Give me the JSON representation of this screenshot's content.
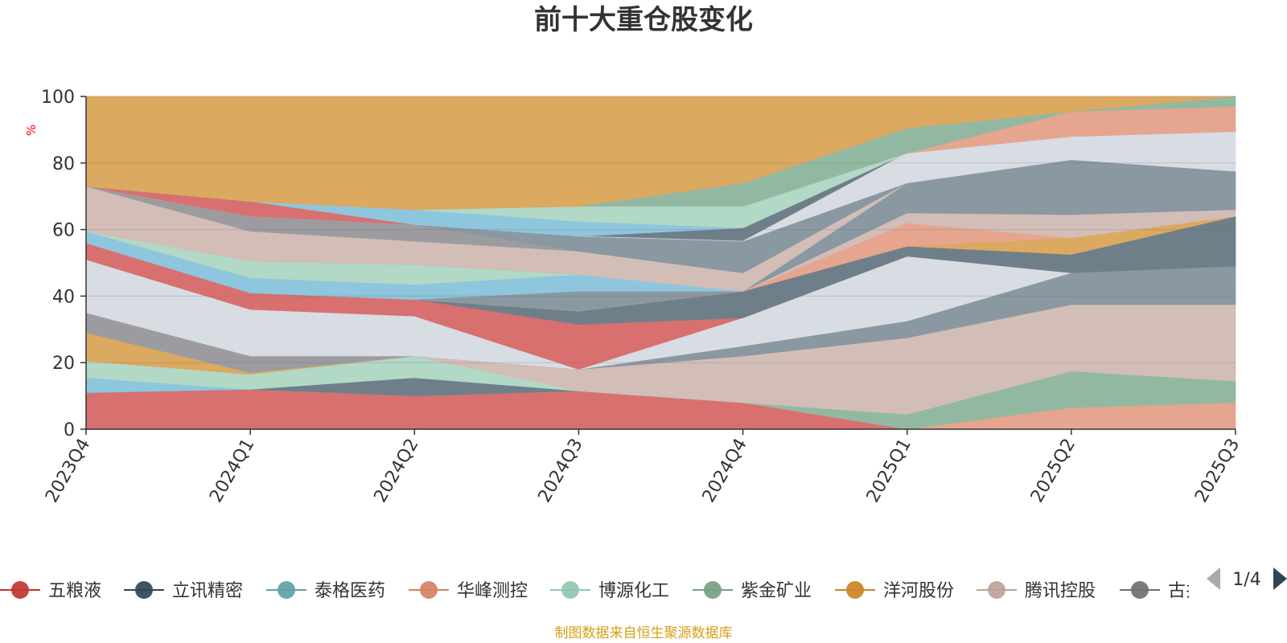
{
  "chart_data": {
    "type": "area",
    "title": "前十大重仓股变化",
    "ylabel": "%",
    "ylim": [
      0,
      100
    ],
    "yticks": [
      0,
      20,
      40,
      60,
      80,
      100
    ],
    "categories": [
      "2023Q4",
      "2024Q1",
      "2024Q2",
      "2024Q3",
      "2024Q4",
      "2025Q1",
      "2025Q2",
      "2025Q3"
    ],
    "bands": [
      {
        "color": "#d87070",
        "lower": [
          0,
          0,
          0,
          0,
          0,
          0,
          0,
          0
        ],
        "upper": [
          11,
          12,
          10,
          11.5,
          8,
          0,
          0,
          0
        ]
      },
      {
        "color": "#e6a58e",
        "lower": [
          0,
          0,
          0,
          0,
          0,
          0,
          0,
          0
        ],
        "upper": [
          0,
          0,
          0,
          0,
          0,
          0,
          6.5,
          8
        ]
      },
      {
        "color": "#93b8a2",
        "lower": [
          11,
          12,
          10,
          11.5,
          8,
          0,
          6.5,
          8
        ],
        "upper": [
          11,
          12,
          10,
          11.5,
          8,
          4.5,
          17.5,
          14.5
        ]
      },
      {
        "color": "#6e7f8a",
        "lower": [
          11,
          12,
          10,
          11.5,
          8,
          4.5,
          17.5,
          14.5
        ],
        "upper": [
          11,
          12,
          15.5,
          11.5,
          8,
          4.5,
          17.5,
          14.5
        ]
      },
      {
        "color": "#8ec6de",
        "lower": [
          11,
          12,
          15.5,
          11.5,
          8,
          4.5,
          17.5,
          14.5
        ],
        "upper": [
          15.5,
          12,
          15.5,
          11.5,
          8,
          4.5,
          17.5,
          14.5
        ]
      },
      {
        "color": "#b2d8c6",
        "lower": [
          15.5,
          12,
          15.5,
          11.5,
          8,
          4.5,
          17.5,
          14.5
        ],
        "upper": [
          20.5,
          16.5,
          22,
          18,
          8,
          4.5,
          17.5,
          14.5
        ]
      },
      {
        "color": "#d2bdb7",
        "lower": [
          20.5,
          16.5,
          22,
          11.5,
          8,
          4.5,
          17.5,
          14.5
        ],
        "upper": [
          20.5,
          16.5,
          22,
          18,
          22,
          27.5,
          37.5,
          37.5
        ]
      },
      {
        "color": "#dba95f",
        "lower": [
          20.5,
          16.5,
          22,
          18,
          22,
          27.5,
          37.5,
          37.5
        ],
        "upper": [
          29,
          17,
          22,
          18,
          22,
          27.5,
          37.5,
          37.5
        ]
      },
      {
        "color": "#9c9ca0",
        "lower": [
          29,
          17,
          22,
          18,
          22,
          27.5,
          37.5,
          37.5
        ],
        "upper": [
          35,
          22,
          22,
          18,
          22,
          27.5,
          37.5,
          37.5
        ]
      },
      {
        "color": "#8a98a2",
        "lower": [
          35,
          22,
          22,
          18,
          22,
          27.5,
          37.5,
          37.5
        ],
        "upper": [
          35,
          22,
          22,
          18,
          25,
          32.5,
          47,
          49
        ]
      },
      {
        "color": "#d8dce3",
        "lower": [
          35,
          22,
          22,
          18,
          25,
          32.5,
          47,
          49
        ],
        "upper": [
          51,
          36,
          34,
          18,
          33.5,
          52,
          47,
          49
        ]
      },
      {
        "color": "#d87070",
        "lower": [
          51,
          36,
          34,
          18,
          33.5,
          52,
          47,
          49
        ],
        "upper": [
          56,
          41,
          39,
          31.5,
          33.5,
          52,
          47,
          49
        ]
      },
      {
        "color": "#6e7f8a",
        "lower": [
          56,
          41,
          39,
          31.5,
          33.5,
          52,
          47,
          49
        ],
        "upper": [
          56,
          41,
          39,
          35.5,
          41.5,
          55,
          52.5,
          64
        ]
      },
      {
        "color": "#dba95f",
        "lower": [
          56,
          41,
          39,
          35.5,
          41.5,
          55,
          52.5,
          64
        ],
        "upper": [
          56,
          41,
          39,
          35.5,
          41.5,
          55,
          57.5,
          64
        ]
      },
      {
        "color": "#e6a58e",
        "lower": [
          56,
          41,
          39,
          35.5,
          41.5,
          55,
          57.5,
          64
        ],
        "upper": [
          56,
          41,
          39,
          35.5,
          41.5,
          62,
          57.5,
          64
        ]
      },
      {
        "color": "#d2bdb7",
        "lower": [
          56,
          41,
          39,
          35.5,
          41.5,
          62,
          57.5,
          64
        ],
        "upper": [
          56,
          41,
          39,
          35.5,
          41.5,
          65,
          64.5,
          66
        ]
      },
      {
        "color": "#8a98a2",
        "lower": [
          56,
          41,
          39,
          35.5,
          41.5,
          65,
          64.5,
          66
        ],
        "upper": [
          56,
          41,
          39,
          41.5,
          41.5,
          74,
          81,
          77.5
        ]
      },
      {
        "color": "#8ec6de",
        "lower": [
          56,
          41,
          39,
          41.5,
          41.5,
          74,
          81,
          77.5
        ],
        "upper": [
          59.5,
          45.5,
          43.5,
          46.5,
          41.5,
          74,
          81,
          77.5
        ]
      },
      {
        "color": "#b2d8c6",
        "lower": [
          59.5,
          45.5,
          43.5,
          46.5,
          41.5,
          74,
          81,
          77.5
        ],
        "upper": [
          60,
          50.5,
          49.5,
          46.5,
          41.5,
          74,
          81,
          77.5
        ]
      },
      {
        "color": "#93b8a2",
        "lower": [
          60,
          50.5,
          49.5,
          46.5,
          41.5,
          74,
          81,
          77.5
        ],
        "upper": [
          64.5,
          50.5,
          49.5,
          46.5,
          41.5,
          74,
          81,
          77.5
        ]
      },
      {
        "color": "#d2bdb7",
        "lower": [
          59.5,
          50.5,
          49.5,
          46.5,
          41.5,
          74,
          81,
          77.5
        ],
        "upper": [
          73,
          59.5,
          56.5,
          53.5,
          47,
          74,
          81,
          77.5
        ]
      },
      {
        "color": "#9c9ca0",
        "lower": [
          73,
          59.5,
          56.5,
          53.5,
          47,
          74,
          81,
          77.5
        ],
        "upper": [
          73,
          64,
          61.5,
          53.5,
          47,
          74,
          81,
          77.5
        ]
      },
      {
        "color": "#8a98a2",
        "lower": [
          73,
          64,
          61.5,
          53.5,
          47,
          74,
          81,
          77.5
        ],
        "upper": [
          73,
          64,
          61.5,
          58,
          56.5,
          74,
          81,
          77.5
        ]
      },
      {
        "color": "#6e7f8a",
        "lower": [
          73,
          64,
          61.5,
          58,
          56.5,
          74,
          81,
          77.5
        ],
        "upper": [
          73,
          64,
          61.5,
          58,
          60.5,
          83,
          81,
          77.5
        ]
      },
      {
        "color": "#d8dce3",
        "lower": [
          73,
          64,
          61.5,
          58,
          56.5,
          74,
          81,
          77.5
        ],
        "upper": [
          73,
          64,
          61.5,
          58,
          56.5,
          83,
          88,
          89.5
        ]
      },
      {
        "color": "#d87070",
        "lower": [
          73,
          64,
          61.5,
          58,
          60.5,
          83,
          88,
          89.5
        ],
        "upper": [
          73,
          68.5,
          61.5,
          58,
          60.5,
          83,
          88,
          89.5
        ]
      },
      {
        "color": "#8ec6de",
        "lower": [
          73,
          68.5,
          61.5,
          58,
          60.5,
          83,
          88,
          89.5
        ],
        "upper": [
          73,
          68.5,
          66,
          62.5,
          60.5,
          83,
          88,
          89.5
        ]
      },
      {
        "color": "#b2d8c6",
        "lower": [
          73,
          68.5,
          66,
          62.5,
          60.5,
          83,
          88,
          89.5
        ],
        "upper": [
          73,
          68.5,
          66,
          67,
          67,
          83,
          88,
          89.5
        ]
      },
      {
        "color": "#e6a58e",
        "lower": [
          73,
          68.5,
          66,
          67,
          67,
          83,
          88,
          89.5
        ],
        "upper": [
          73,
          68.5,
          66,
          67,
          67,
          83,
          95.5,
          97
        ]
      },
      {
        "color": "#93b8a2",
        "lower": [
          73,
          68.5,
          66,
          67,
          67,
          83,
          95.5,
          97
        ],
        "upper": [
          73,
          68.5,
          66,
          67,
          74,
          90.5,
          95.5,
          100
        ]
      },
      {
        "color": "#dba95f",
        "lower": [
          73,
          68.5,
          66,
          67,
          74,
          90.5,
          95.5,
          100
        ],
        "upper": [
          100,
          100,
          100,
          100,
          100,
          100,
          100,
          100
        ]
      }
    ],
    "legend": [
      {
        "label": "五粮液",
        "color": "#c23531"
      },
      {
        "label": "立讯精密",
        "color": "#2f4554"
      },
      {
        "label": "泰格医药",
        "color": "#61a0a8"
      },
      {
        "label": "华峰测控",
        "color": "#d48265"
      },
      {
        "label": "博源化工",
        "color": "#91c7ae"
      },
      {
        "label": "紫金矿业",
        "color": "#749f83"
      },
      {
        "label": "洋河股份",
        "color": "#ca8622"
      },
      {
        "label": "腾讯控股",
        "color": "#bda29a"
      },
      {
        "label": "古井贡酒",
        "color": "#6e7074"
      }
    ],
    "legend_page": "1/4"
  },
  "footer": "制图数据来自恒生聚源数据库",
  "icons": {
    "prev": "triangle-left-icon",
    "next": "triangle-right-icon"
  }
}
